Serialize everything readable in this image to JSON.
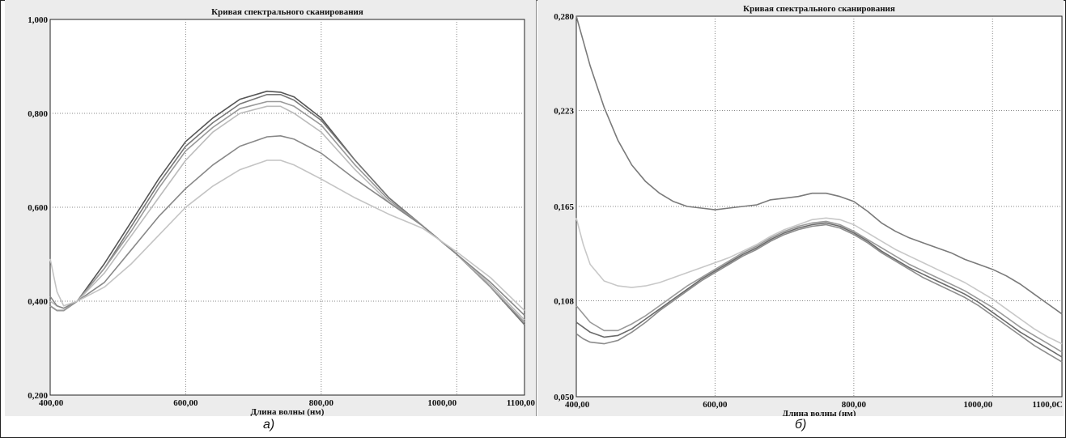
{
  "chart_data": [
    {
      "type": "line",
      "title": "Кривая спектрального сканирования",
      "xlabel": "Длина волны (нм)",
      "ylabel": "",
      "xlim": [
        400,
        1100
      ],
      "ylim": [
        0.2,
        1.0
      ],
      "x_ticks": [
        "400,00",
        "600,00",
        "800,00",
        "1000,00",
        "1100,00"
      ],
      "x_tick_values": [
        400,
        600,
        800,
        1000,
        1100
      ],
      "y_ticks": [
        "0,200",
        "0,400",
        "0,600",
        "0,800",
        "1,000"
      ],
      "y_tick_values": [
        0.2,
        0.4,
        0.6,
        0.8,
        1.0
      ],
      "x_grid": [
        600,
        800,
        1000
      ],
      "grid": true,
      "caption": "а)",
      "series": [
        {
          "color": "#555555",
          "x": [
            400,
            410,
            420,
            440,
            480,
            520,
            560,
            600,
            640,
            680,
            720,
            740,
            760,
            800,
            850,
            900,
            950,
            1000,
            1050,
            1100
          ],
          "y": [
            0.39,
            0.38,
            0.38,
            0.4,
            0.48,
            0.57,
            0.66,
            0.74,
            0.79,
            0.83,
            0.847,
            0.845,
            0.835,
            0.79,
            0.7,
            0.62,
            0.56,
            0.5,
            0.43,
            0.35
          ]
        },
        {
          "color": "#777777",
          "x": [
            400,
            410,
            420,
            440,
            480,
            520,
            560,
            600,
            640,
            680,
            720,
            740,
            760,
            800,
            850,
            900,
            950,
            1000,
            1050,
            1100
          ],
          "y": [
            0.39,
            0.38,
            0.38,
            0.4,
            0.47,
            0.56,
            0.65,
            0.73,
            0.78,
            0.82,
            0.84,
            0.84,
            0.828,
            0.785,
            0.7,
            0.62,
            0.56,
            0.5,
            0.43,
            0.35
          ]
        },
        {
          "color": "#999999",
          "x": [
            400,
            410,
            420,
            440,
            480,
            520,
            560,
            600,
            640,
            680,
            720,
            740,
            760,
            800,
            850,
            900,
            950,
            1000,
            1050,
            1100
          ],
          "y": [
            0.39,
            0.38,
            0.38,
            0.4,
            0.47,
            0.55,
            0.64,
            0.72,
            0.77,
            0.81,
            0.825,
            0.825,
            0.815,
            0.775,
            0.69,
            0.615,
            0.56,
            0.5,
            0.43,
            0.355
          ]
        },
        {
          "color": "#bbbbbb",
          "x": [
            400,
            410,
            420,
            440,
            480,
            520,
            560,
            600,
            640,
            680,
            720,
            740,
            760,
            800,
            850,
            900,
            950,
            1000,
            1050,
            1100
          ],
          "y": [
            0.4,
            0.39,
            0.385,
            0.4,
            0.46,
            0.54,
            0.62,
            0.7,
            0.76,
            0.8,
            0.815,
            0.815,
            0.8,
            0.76,
            0.68,
            0.61,
            0.56,
            0.5,
            0.435,
            0.36
          ]
        },
        {
          "color": "#888888",
          "x": [
            400,
            410,
            420,
            440,
            480,
            520,
            560,
            600,
            640,
            680,
            720,
            740,
            760,
            800,
            850,
            900,
            950,
            1000,
            1050,
            1100
          ],
          "y": [
            0.41,
            0.39,
            0.385,
            0.4,
            0.44,
            0.51,
            0.58,
            0.64,
            0.69,
            0.73,
            0.75,
            0.752,
            0.745,
            0.715,
            0.66,
            0.61,
            0.56,
            0.5,
            0.44,
            0.37
          ]
        },
        {
          "color": "#c4c4c4",
          "x": [
            400,
            410,
            420,
            440,
            480,
            520,
            560,
            600,
            640,
            680,
            720,
            740,
            760,
            800,
            850,
            900,
            950,
            1000,
            1050,
            1100
          ],
          "y": [
            0.49,
            0.42,
            0.39,
            0.4,
            0.43,
            0.48,
            0.54,
            0.6,
            0.645,
            0.68,
            0.7,
            0.7,
            0.69,
            0.66,
            0.62,
            0.585,
            0.555,
            0.505,
            0.45,
            0.38
          ]
        }
      ]
    },
    {
      "type": "line",
      "title": "Кривая спектрального сканирования",
      "xlabel": "Длина волны (нм)",
      "ylabel": "",
      "xlim": [
        400,
        1100
      ],
      "ylim": [
        0.05,
        0.28
      ],
      "x_ticks": [
        "400,00",
        "600,00",
        "800,00",
        "1000,00",
        "1100,0С"
      ],
      "x_tick_values": [
        400,
        600,
        800,
        1000,
        1100
      ],
      "y_ticks": [
        "0,050",
        "0,108",
        "0,165",
        "0,223",
        "0,280"
      ],
      "y_tick_values": [
        0.05,
        0.108,
        0.165,
        0.223,
        0.28
      ],
      "x_grid": [
        600,
        800,
        1000
      ],
      "grid": true,
      "caption": "б)",
      "series": [
        {
          "color": "#7a7a7a",
          "x": [
            400,
            410,
            420,
            440,
            460,
            480,
            500,
            520,
            540,
            560,
            580,
            600,
            620,
            640,
            660,
            680,
            700,
            720,
            740,
            760,
            780,
            800,
            820,
            840,
            860,
            880,
            900,
            920,
            940,
            960,
            980,
            1000,
            1020,
            1040,
            1060,
            1080,
            1100
          ],
          "y": [
            0.28,
            0.265,
            0.25,
            0.225,
            0.205,
            0.19,
            0.18,
            0.173,
            0.168,
            0.165,
            0.164,
            0.163,
            0.164,
            0.165,
            0.166,
            0.169,
            0.17,
            0.171,
            0.173,
            0.173,
            0.171,
            0.168,
            0.162,
            0.155,
            0.15,
            0.146,
            0.143,
            0.14,
            0.137,
            0.133,
            0.13,
            0.127,
            0.123,
            0.118,
            0.112,
            0.106,
            0.1
          ]
        },
        {
          "color": "#c8c8c8",
          "x": [
            400,
            410,
            420,
            440,
            460,
            480,
            500,
            520,
            540,
            560,
            580,
            600,
            620,
            640,
            660,
            680,
            700,
            720,
            740,
            760,
            780,
            800,
            820,
            840,
            860,
            880,
            900,
            920,
            940,
            960,
            980,
            1000,
            1020,
            1040,
            1060,
            1080,
            1100
          ],
          "y": [
            0.158,
            0.142,
            0.13,
            0.12,
            0.117,
            0.116,
            0.117,
            0.119,
            0.122,
            0.125,
            0.128,
            0.131,
            0.134,
            0.138,
            0.142,
            0.147,
            0.151,
            0.154,
            0.157,
            0.158,
            0.157,
            0.154,
            0.149,
            0.144,
            0.139,
            0.135,
            0.131,
            0.127,
            0.123,
            0.119,
            0.114,
            0.109,
            0.103,
            0.097,
            0.091,
            0.086,
            0.082
          ]
        },
        {
          "color": "#9a9a9a",
          "x": [
            400,
            410,
            420,
            440,
            460,
            480,
            500,
            520,
            540,
            560,
            580,
            600,
            620,
            640,
            660,
            680,
            700,
            720,
            740,
            760,
            780,
            800,
            820,
            840,
            860,
            880,
            900,
            920,
            940,
            960,
            980,
            1000,
            1020,
            1040,
            1060,
            1080,
            1100
          ],
          "y": [
            0.105,
            0.1,
            0.095,
            0.09,
            0.09,
            0.094,
            0.099,
            0.105,
            0.111,
            0.117,
            0.122,
            0.127,
            0.132,
            0.137,
            0.141,
            0.146,
            0.15,
            0.153,
            0.155,
            0.156,
            0.154,
            0.15,
            0.145,
            0.14,
            0.135,
            0.13,
            0.126,
            0.122,
            0.118,
            0.114,
            0.109,
            0.104,
            0.098,
            0.092,
            0.087,
            0.082,
            0.077
          ]
        },
        {
          "color": "#6a6a6a",
          "x": [
            400,
            410,
            420,
            440,
            460,
            480,
            500,
            520,
            540,
            560,
            580,
            600,
            620,
            640,
            660,
            680,
            700,
            720,
            740,
            760,
            780,
            800,
            820,
            840,
            860,
            880,
            900,
            920,
            940,
            960,
            980,
            1000,
            1020,
            1040,
            1060,
            1080,
            1100
          ],
          "y": [
            0.095,
            0.092,
            0.089,
            0.086,
            0.087,
            0.091,
            0.097,
            0.103,
            0.109,
            0.115,
            0.121,
            0.126,
            0.131,
            0.136,
            0.14,
            0.145,
            0.149,
            0.152,
            0.154,
            0.155,
            0.153,
            0.149,
            0.144,
            0.138,
            0.133,
            0.128,
            0.124,
            0.12,
            0.116,
            0.112,
            0.107,
            0.101,
            0.095,
            0.089,
            0.084,
            0.079,
            0.074
          ]
        },
        {
          "color": "#8c8c8c",
          "x": [
            400,
            410,
            420,
            440,
            460,
            480,
            500,
            520,
            540,
            560,
            580,
            600,
            620,
            640,
            660,
            680,
            700,
            720,
            740,
            760,
            780,
            800,
            820,
            840,
            860,
            880,
            900,
            920,
            940,
            960,
            980,
            1000,
            1020,
            1040,
            1060,
            1080,
            1100
          ],
          "y": [
            0.088,
            0.085,
            0.083,
            0.082,
            0.084,
            0.089,
            0.095,
            0.102,
            0.108,
            0.114,
            0.12,
            0.125,
            0.13,
            0.135,
            0.139,
            0.144,
            0.148,
            0.151,
            0.153,
            0.154,
            0.152,
            0.148,
            0.143,
            0.137,
            0.132,
            0.127,
            0.122,
            0.118,
            0.114,
            0.11,
            0.105,
            0.099,
            0.093,
            0.087,
            0.081,
            0.076,
            0.071
          ]
        }
      ]
    }
  ]
}
